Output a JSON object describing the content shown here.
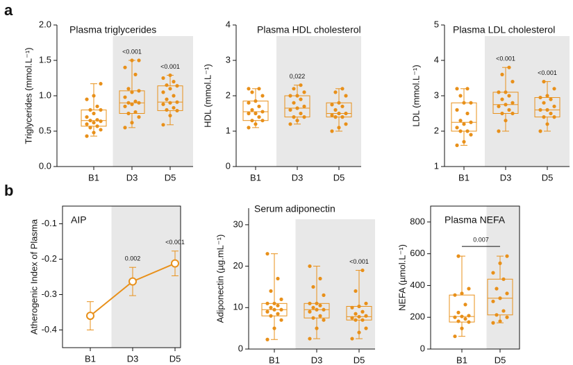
{
  "panel_labels": [
    "a",
    "b"
  ],
  "chart_data": [
    {
      "type": "box",
      "title": "Plasma triglycerides",
      "ylabel": "Triglycerides (mmol.L⁻¹)",
      "color": "#e8901a",
      "frame": false,
      "categories": [
        "B1",
        "D3",
        "D5"
      ],
      "shaded": [
        false,
        true,
        true
      ],
      "annotations": [
        null,
        "<0.001",
        "<0.001"
      ],
      "ylim": [
        0,
        2.0
      ],
      "yticks": [
        {
          "value": 0,
          "label": "0.0"
        },
        {
          "value": 0.5,
          "label": "0.5"
        },
        {
          "value": 1,
          "label": "1.0"
        },
        {
          "value": 1.5,
          "label": "1.5"
        },
        {
          "value": 2,
          "label": "2.0"
        }
      ],
      "boxes": [
        {
          "min": 0.43,
          "q1": 0.57,
          "median": 0.65,
          "q3": 0.8,
          "max": 1.17,
          "points": [
            0.43,
            0.48,
            0.52,
            0.55,
            0.57,
            0.6,
            0.62,
            0.64,
            0.65,
            0.66,
            0.7,
            0.75,
            0.8,
            0.8,
            0.85,
            0.95,
            1.0,
            1.17
          ]
        },
        {
          "min": 0.55,
          "q1": 0.75,
          "median": 0.9,
          "q3": 1.07,
          "max": 1.5,
          "points": [
            0.55,
            0.62,
            0.7,
            0.75,
            0.77,
            0.85,
            0.88,
            0.9,
            0.9,
            0.92,
            0.98,
            1.05,
            1.07,
            1.1,
            1.3,
            1.4,
            1.5,
            1.5
          ]
        },
        {
          "min": 0.59,
          "q1": 0.79,
          "median": 0.91,
          "q3": 1.14,
          "max": 1.29,
          "points": [
            0.59,
            0.72,
            0.79,
            0.8,
            0.83,
            0.88,
            0.9,
            0.91,
            0.95,
            1.0,
            1.05,
            1.1,
            1.14,
            1.15,
            1.2,
            1.25,
            1.29
          ]
        }
      ]
    },
    {
      "type": "box",
      "title": "Plasma HDL cholesterol",
      "ylabel": "HDL (mmol.L⁻¹)",
      "color": "#e8901a",
      "frame": false,
      "categories": [
        "B1",
        "D3",
        "D5"
      ],
      "shaded": [
        false,
        true,
        true
      ],
      "annotations": [
        null,
        "0,022",
        null
      ],
      "ylim": [
        0,
        4
      ],
      "yticks": [
        0,
        1,
        2,
        3,
        4
      ],
      "boxes": [
        {
          "min": 1.1,
          "q1": 1.3,
          "median": 1.55,
          "q3": 1.85,
          "max": 2.2,
          "points": [
            1.1,
            1.2,
            1.3,
            1.3,
            1.4,
            1.5,
            1.5,
            1.55,
            1.6,
            1.7,
            1.8,
            1.85,
            2.0,
            2.1,
            2.2,
            2.2
          ]
        },
        {
          "min": 1.2,
          "q1": 1.4,
          "median": 1.65,
          "q3": 2.0,
          "max": 2.3,
          "points": [
            1.2,
            1.3,
            1.4,
            1.4,
            1.5,
            1.6,
            1.65,
            1.7,
            1.8,
            1.9,
            2.0,
            2.0,
            2.1,
            2.2,
            2.3
          ]
        },
        {
          "min": 1.0,
          "q1": 1.4,
          "median": 1.5,
          "q3": 1.8,
          "max": 2.2,
          "points": [
            1.0,
            1.1,
            1.2,
            1.4,
            1.4,
            1.45,
            1.5,
            1.5,
            1.6,
            1.7,
            1.75,
            1.8,
            2.0,
            2.1,
            2.2
          ]
        }
      ]
    },
    {
      "type": "box",
      "title": "Plasma LDL cholesterol",
      "ylabel": "LDL (mmol.L⁻¹)",
      "color": "#e8901a",
      "frame": false,
      "categories": [
        "B1",
        "D3",
        "D5"
      ],
      "shaded": [
        false,
        true,
        true
      ],
      "annotations": [
        null,
        "<0.001",
        "<0.001"
      ],
      "ylim": [
        1,
        5
      ],
      "yticks": [
        1,
        2,
        3,
        4,
        5
      ],
      "boxes": [
        {
          "min": 1.6,
          "q1": 2.0,
          "median": 2.25,
          "q3": 2.8,
          "max": 3.2,
          "points": [
            1.6,
            1.7,
            1.9,
            2.0,
            2.0,
            2.1,
            2.2,
            2.25,
            2.3,
            2.5,
            2.6,
            2.8,
            2.8,
            3.0,
            3.2,
            3.2
          ]
        },
        {
          "min": 2.0,
          "q1": 2.5,
          "median": 2.75,
          "q3": 3.1,
          "max": 3.8,
          "points": [
            2.0,
            2.3,
            2.5,
            2.5,
            2.6,
            2.7,
            2.75,
            2.8,
            2.9,
            3.0,
            3.1,
            3.1,
            3.4,
            3.6,
            3.8
          ]
        },
        {
          "min": 2.0,
          "q1": 2.4,
          "median": 2.6,
          "q3": 2.95,
          "max": 3.4,
          "points": [
            2.0,
            2.2,
            2.4,
            2.4,
            2.5,
            2.6,
            2.6,
            2.7,
            2.8,
            2.9,
            2.95,
            3.0,
            3.2,
            3.4
          ]
        }
      ]
    },
    {
      "type": "line",
      "title": "AIP",
      "ylabel": "Atherogenic Index of Plasma",
      "color": "#e8901a",
      "frame": true,
      "categories": [
        "B1",
        "D3",
        "D5"
      ],
      "shaded": [
        false,
        true,
        true
      ],
      "annotations": [
        null,
        "0.002",
        "<0.001"
      ],
      "ylim": [
        -0.45,
        -0.05
      ],
      "yticks": [
        -0.4,
        -0.3,
        -0.2,
        -0.1
      ],
      "values": [
        -0.36,
        -0.263,
        -0.212
      ],
      "errors": [
        0.04,
        0.04,
        0.035
      ]
    },
    {
      "type": "box",
      "title": "Serum adiponectin",
      "ylabel": "Adiponectin (µg.mL⁻¹)",
      "color": "#e8901a",
      "frame": false,
      "categories": [
        "B1",
        "D3",
        "D5"
      ],
      "shaded": [
        false,
        true,
        true
      ],
      "annotations": [
        null,
        null,
        "<0.001"
      ],
      "ylim": [
        0,
        34
      ],
      "yticks": [
        0,
        10,
        20,
        30
      ],
      "boxes": [
        {
          "min": 2.3,
          "q1": 8,
          "median": 9.5,
          "q3": 11,
          "max": 23,
          "points": [
            2.3,
            5,
            7,
            8,
            8.5,
            9,
            9.5,
            9.5,
            10,
            10.5,
            11,
            11,
            12,
            14,
            17,
            23
          ]
        },
        {
          "min": 2.5,
          "q1": 7.5,
          "median": 9.5,
          "q3": 11,
          "max": 20,
          "points": [
            2.5,
            5,
            7,
            7.5,
            8,
            9,
            9.5,
            9.5,
            10,
            10.5,
            11,
            11,
            13,
            15,
            17,
            20
          ]
        },
        {
          "min": 2.5,
          "q1": 7,
          "median": 7.8,
          "q3": 10.3,
          "max": 19,
          "points": [
            2.5,
            4,
            5,
            7,
            7,
            7.5,
            7.8,
            8,
            8.5,
            9,
            10,
            10.3,
            11,
            14,
            19
          ]
        }
      ]
    },
    {
      "type": "box",
      "title": "Plasma NEFA",
      "ylabel": "NEFA (µmol.L⁻¹)",
      "color": "#e8901a",
      "frame": true,
      "categories": [
        "B1",
        "D5"
      ],
      "shaded": [
        false,
        true
      ],
      "annotations": [
        null,
        null
      ],
      "bracket_label": "0.007",
      "ylim": [
        0,
        900
      ],
      "yticks": [
        0,
        200,
        400,
        600,
        800
      ],
      "boxes": [
        {
          "min": 80,
          "q1": 170,
          "median": 205,
          "q3": 340,
          "max": 585,
          "points": [
            80,
            130,
            170,
            175,
            190,
            200,
            205,
            210,
            230,
            280,
            340,
            350,
            380,
            585
          ]
        },
        {
          "min": 165,
          "q1": 215,
          "median": 320,
          "q3": 440,
          "max": 585,
          "points": [
            165,
            175,
            200,
            215,
            240,
            300,
            320,
            350,
            380,
            440,
            480,
            540,
            585
          ]
        }
      ]
    }
  ]
}
